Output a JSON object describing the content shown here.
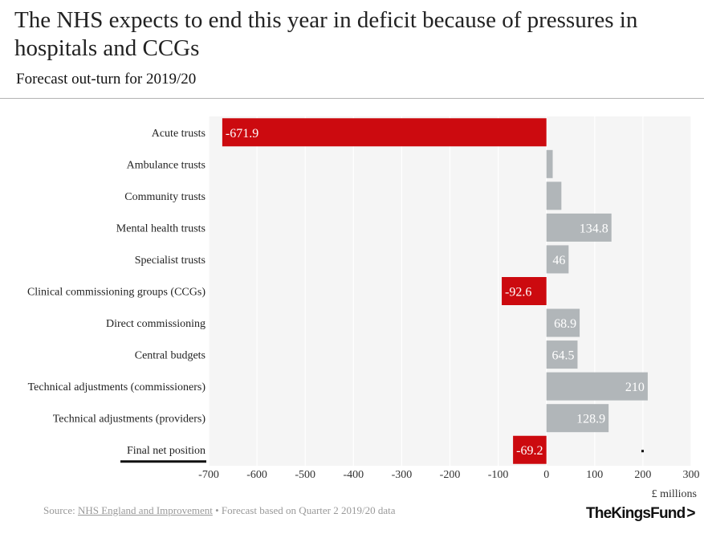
{
  "header": {
    "title": "The NHS expects to end this year in deficit because of pressures in hospitals and CCGs",
    "subtitle": "Forecast out-turn for 2019/20"
  },
  "footer": {
    "source_prefix": "Source: ",
    "source_link": "NHS England and Improvement",
    "source_suffix": " • Forecast based on Quarter 2 2019/20 data",
    "logo_text": "TheKingsFund",
    "logo_mark": ">"
  },
  "colors": {
    "negative": "#cc0a0f",
    "positive": "#b1b6b9",
    "plot_bg": "#f5f5f5",
    "grid": "#ffffff"
  },
  "chart_data": {
    "type": "bar",
    "orientation": "horizontal",
    "title": "Forecast out-turn for 2019/20",
    "xlabel": "£ millions",
    "xlim": [
      -700,
      300
    ],
    "xticks": [
      -700,
      -600,
      -500,
      -400,
      -300,
      -200,
      -100,
      0,
      100,
      200,
      300
    ],
    "xtick_labels": [
      "-700",
      "-600",
      "-500",
      "-400",
      "-300",
      "-200",
      "-100",
      "0",
      "100",
      "200",
      "300"
    ],
    "categories": [
      "Acute trusts",
      "Ambulance trusts",
      "Community trusts",
      "Mental health trusts",
      "Specialist trusts",
      "Clinical commissioning groups (CCGs)",
      "Direct commissioning",
      "Central budgets",
      "Technical adjustments (commissioners)",
      "Technical adjustments (providers)",
      "Final net position"
    ],
    "values": [
      -671.9,
      13,
      31,
      134.8,
      46,
      -92.6,
      68.9,
      64.5,
      210,
      128.9,
      -69.2
    ],
    "data_labels": [
      "-671.9",
      "",
      "",
      "134.8",
      "46",
      "-92.6",
      "68.9",
      "64.5",
      "210",
      "128.9",
      "-69.2"
    ],
    "highlight_category": "Final net position"
  }
}
